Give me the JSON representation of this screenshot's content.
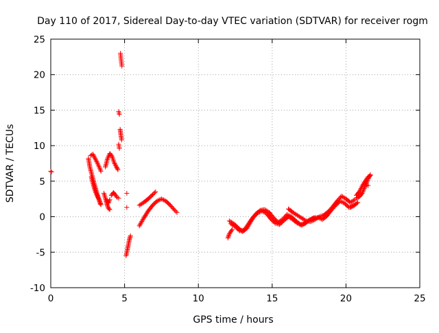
{
  "chart_data": {
    "type": "scatter",
    "title": "Day 110 of 2017, Sidereal Day-to-day VTEC variation (SDTVAR) for receiver rogm",
    "xlabel": "GPS time / hours",
    "ylabel": "SDTVAR / TECUs",
    "xlim": [
      0,
      25
    ],
    "ylim": [
      -10,
      25
    ],
    "xticks": [
      0,
      5,
      10,
      15,
      20,
      25
    ],
    "yticks": [
      -10,
      -5,
      0,
      5,
      10,
      15,
      20,
      25
    ],
    "xtick_labels": [
      "0",
      "5",
      "10",
      "15",
      "20",
      "25"
    ],
    "ytick_labels": [
      "-10",
      "-5",
      "0",
      "5",
      "10",
      "15",
      "20",
      "25"
    ],
    "grid": true,
    "marker": "plus",
    "color": "#ff0000",
    "series": [
      {
        "tracks": [
          [
            [
              0.0,
              6.4
            ],
            [
              0.05,
              6.3
            ]
          ],
          [
            [
              2.55,
              8.2
            ],
            [
              2.65,
              7.0
            ],
            [
              2.8,
              5.8
            ],
            [
              2.95,
              4.6
            ],
            [
              3.1,
              3.5
            ],
            [
              3.25,
              2.5
            ],
            [
              3.35,
              1.8
            ]
          ],
          [
            [
              2.7,
              8.6
            ],
            [
              2.85,
              8.8
            ],
            [
              3.0,
              8.2
            ],
            [
              3.15,
              7.6
            ],
            [
              3.3,
              6.9
            ],
            [
              3.4,
              6.4
            ]
          ],
          [
            [
              2.75,
              5.6
            ],
            [
              2.85,
              4.8
            ],
            [
              2.95,
              4.0
            ],
            [
              3.05,
              3.4
            ],
            [
              3.15,
              2.9
            ],
            [
              3.3,
              2.3
            ],
            [
              3.4,
              1.7
            ]
          ],
          [
            [
              3.6,
              3.3
            ],
            [
              3.7,
              2.6
            ],
            [
              3.8,
              1.8
            ],
            [
              3.9,
              1.2
            ],
            [
              4.0,
              1.0
            ]
          ],
          [
            [
              3.7,
              7.0
            ],
            [
              3.85,
              8.2
            ],
            [
              4.0,
              8.9
            ],
            [
              4.15,
              8.5
            ],
            [
              4.3,
              7.6
            ],
            [
              4.45,
              7.0
            ],
            [
              4.55,
              6.6
            ]
          ],
          [
            [
              3.8,
              2.3
            ],
            [
              3.9,
              1.9
            ],
            [
              4.0,
              2.4
            ]
          ],
          [
            [
              4.1,
              3.0
            ],
            [
              4.25,
              3.4
            ],
            [
              4.4,
              3.0
            ],
            [
              4.5,
              2.7
            ],
            [
              4.6,
              2.6
            ]
          ],
          [
            [
              4.6,
              14.8
            ],
            [
              4.65,
              14.4
            ]
          ],
          [
            [
              4.6,
              10.2
            ],
            [
              4.65,
              9.6
            ]
          ],
          [
            [
              4.7,
              12.3
            ],
            [
              4.75,
              11.5
            ],
            [
              4.8,
              10.8
            ]
          ],
          [
            [
              4.72,
              23.0
            ],
            [
              4.75,
              22.4
            ],
            [
              4.78,
              21.8
            ],
            [
              4.82,
              21.2
            ]
          ],
          [
            [
              5.15,
              3.3
            ]
          ],
          [
            [
              5.15,
              1.3
            ]
          ],
          [
            [
              5.1,
              -5.5
            ],
            [
              5.18,
              -4.8
            ],
            [
              5.25,
              -4.0
            ],
            [
              5.32,
              -3.3
            ],
            [
              5.4,
              -2.7
            ]
          ],
          [
            [
              6.0,
              1.6
            ],
            [
              6.3,
              2.0
            ],
            [
              6.6,
              2.5
            ],
            [
              6.9,
              3.1
            ],
            [
              7.1,
              3.5
            ]
          ],
          [
            [
              6.0,
              -1.3
            ],
            [
              6.3,
              -0.2
            ],
            [
              6.6,
              0.8
            ],
            [
              6.9,
              1.6
            ],
            [
              7.2,
              2.2
            ],
            [
              7.5,
              2.5
            ],
            [
              7.8,
              2.2
            ],
            [
              8.1,
              1.6
            ],
            [
              8.4,
              0.9
            ],
            [
              8.55,
              0.6
            ]
          ],
          [
            [
              12.0,
              -3.0
            ],
            [
              12.1,
              -2.4
            ],
            [
              12.3,
              -1.8
            ]
          ],
          [
            [
              12.1,
              -0.6
            ],
            [
              12.4,
              -1.0
            ],
            [
              12.7,
              -1.6
            ],
            [
              13.0,
              -2.1
            ],
            [
              13.3,
              -1.6
            ],
            [
              13.6,
              -0.5
            ],
            [
              13.9,
              0.4
            ],
            [
              14.2,
              0.9
            ],
            [
              14.5,
              1.0
            ],
            [
              14.8,
              0.6
            ],
            [
              15.1,
              -0.2
            ],
            [
              15.4,
              -0.8
            ],
            [
              15.7,
              -0.4
            ],
            [
              16.0,
              0.3
            ],
            [
              16.3,
              0.0
            ],
            [
              16.6,
              -0.6
            ],
            [
              16.9,
              -1.1
            ],
            [
              17.2,
              -1.0
            ],
            [
              17.5,
              -0.5
            ],
            [
              17.8,
              -0.2
            ]
          ],
          [
            [
              12.2,
              -1.0
            ],
            [
              12.5,
              -1.4
            ],
            [
              12.8,
              -2.0
            ],
            [
              13.1,
              -1.9
            ],
            [
              13.4,
              -1.0
            ],
            [
              13.7,
              -0.1
            ],
            [
              14.0,
              0.5
            ],
            [
              14.3,
              0.8
            ],
            [
              14.6,
              0.5
            ],
            [
              14.9,
              -0.3
            ],
            [
              15.2,
              -0.9
            ],
            [
              15.5,
              -1.1
            ],
            [
              15.8,
              -0.5
            ],
            [
              16.1,
              0.0
            ],
            [
              16.4,
              -0.4
            ],
            [
              16.7,
              -0.9
            ],
            [
              17.0,
              -1.2
            ],
            [
              17.3,
              -0.8
            ],
            [
              17.6,
              -0.4
            ],
            [
              17.9,
              -0.1
            ]
          ],
          [
            [
              16.1,
              1.1
            ],
            [
              16.4,
              0.6
            ],
            [
              16.7,
              0.2
            ],
            [
              17.0,
              -0.2
            ],
            [
              17.3,
              -0.6
            ],
            [
              17.6,
              -0.7
            ],
            [
              17.9,
              -0.4
            ],
            [
              18.2,
              0.0
            ],
            [
              18.5,
              0.2
            ],
            [
              18.8,
              0.7
            ],
            [
              19.1,
              1.4
            ],
            [
              19.4,
              2.2
            ],
            [
              19.7,
              2.9
            ],
            [
              20.0,
              2.5
            ],
            [
              20.3,
              2.0
            ],
            [
              20.6,
              2.4
            ]
          ],
          [
            [
              17.8,
              -0.3
            ],
            [
              18.1,
              -0.1
            ],
            [
              18.4,
              -0.4
            ],
            [
              18.7,
              0.1
            ],
            [
              19.0,
              0.9
            ],
            [
              19.3,
              1.6
            ],
            [
              19.6,
              2.2
            ],
            [
              19.9,
              1.9
            ],
            [
              20.2,
              1.3
            ],
            [
              20.5,
              1.5
            ],
            [
              20.8,
              2.0
            ]
          ],
          [
            [
              20.7,
              2.6
            ],
            [
              20.9,
              2.8
            ],
            [
              21.1,
              3.3
            ],
            [
              21.3,
              4.3
            ],
            [
              21.5,
              5.3
            ],
            [
              21.65,
              5.9
            ]
          ],
          [
            [
              20.7,
              3.0
            ],
            [
              20.9,
              3.5
            ],
            [
              21.1,
              4.3
            ],
            [
              21.3,
              5.0
            ],
            [
              21.5,
              5.6
            ],
            [
              21.65,
              5.8
            ]
          ],
          [
            [
              20.3,
              1.3
            ],
            [
              20.5,
              1.6
            ]
          ],
          [
            [
              21.3,
              4.5
            ],
            [
              21.5,
              4.4
            ]
          ]
        ]
      }
    ]
  }
}
